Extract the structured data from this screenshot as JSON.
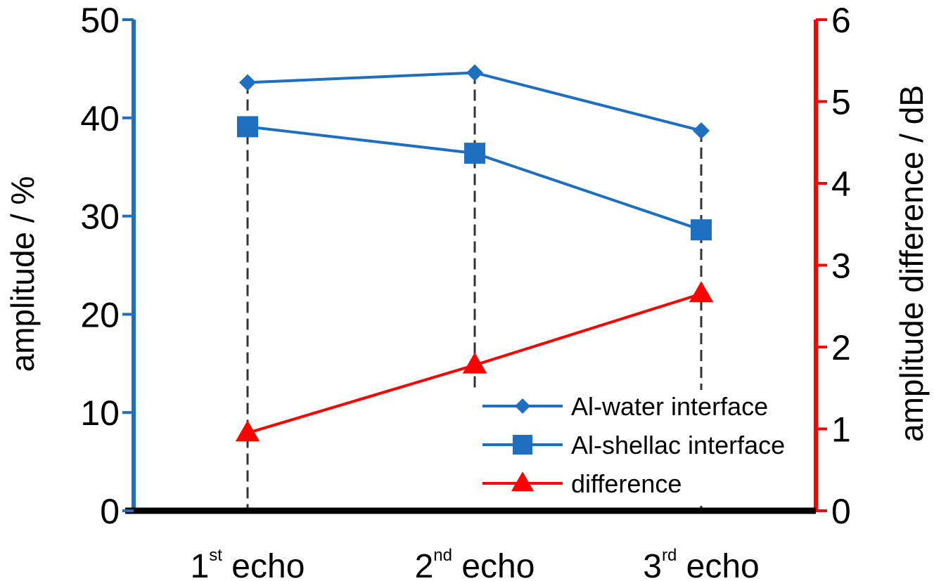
{
  "chart_data": {
    "type": "line",
    "categories": [
      {
        "num": "1",
        "sup": "st",
        "word": "echo"
      },
      {
        "num": "2",
        "sup": "nd",
        "word": "echo"
      },
      {
        "num": "3",
        "sup": "rd",
        "word": "echo"
      }
    ],
    "y_left": {
      "label": "amplitude / %",
      "range": [
        0,
        50
      ],
      "ticks": [
        0,
        10,
        20,
        30,
        40,
        50
      ],
      "color": "#1f6fc0"
    },
    "y_right": {
      "label": "amplitude difference / dB",
      "range": [
        0,
        6
      ],
      "ticks": [
        0,
        1,
        2,
        3,
        4,
        5,
        6
      ],
      "color": "#ff0000"
    },
    "series": [
      {
        "name": "Al-water interface",
        "axis": "left",
        "marker": "diamond",
        "color": "#1f6fc0",
        "values": [
          43.6,
          44.6,
          38.7
        ]
      },
      {
        "name": "Al-shellac interface",
        "axis": "left",
        "marker": "square",
        "color": "#1f6fc0",
        "values": [
          39.1,
          36.4,
          28.6
        ]
      },
      {
        "name": "difference",
        "axis": "right",
        "marker": "triangle",
        "color": "#ff0000",
        "values": [
          0.95,
          1.78,
          2.65
        ]
      }
    ],
    "grid": false,
    "legend_position": "bottom-right",
    "guide_lines": "dashed vertical drop lines at each category"
  }
}
